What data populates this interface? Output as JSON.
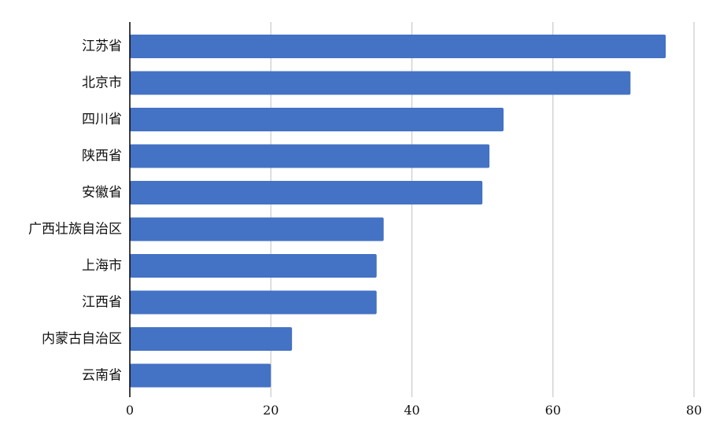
{
  "chart_data": {
    "type": "bar",
    "orientation": "horizontal",
    "categories": [
      "江苏省",
      "北京市",
      "四川省",
      "陕西省",
      "安徽省",
      "广西壮族自治区",
      "上海市",
      "江西省",
      "内蒙古自治区",
      "云南省"
    ],
    "values": [
      76,
      71,
      53,
      51,
      50,
      36,
      35,
      35,
      23,
      20
    ],
    "xlim": [
      0,
      80
    ],
    "xticks": [
      0,
      20,
      40,
      60,
      80
    ],
    "grid": "vertical",
    "legend": "none",
    "title": "",
    "xlabel": "",
    "ylabel": "",
    "colors": {
      "bar": "#4472C4",
      "grid": "#C8C8C8",
      "axis": "#000000"
    }
  }
}
